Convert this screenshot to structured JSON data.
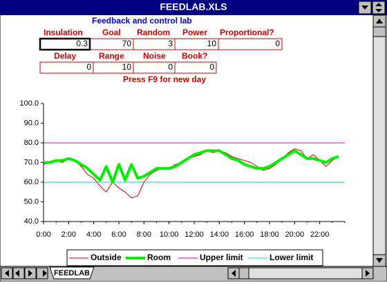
{
  "window": {
    "title": "FEEDLAB.XLS",
    "sheet_tab": "FEEDLAB"
  },
  "sheet": {
    "heading": "Feedback and control lab",
    "row1": [
      {
        "label": "Insulation",
        "value": "0.3"
      },
      {
        "label": "Goal",
        "value": "70"
      },
      {
        "label": "Random",
        "value": "3"
      },
      {
        "label": "Power",
        "value": "10"
      },
      {
        "label": "Proportional?",
        "value": "0"
      }
    ],
    "row2": [
      {
        "label": "Delay",
        "value": "0"
      },
      {
        "label": "Range",
        "value": "10"
      },
      {
        "label": "Noise",
        "value": "0"
      },
      {
        "label": "Book?",
        "value": "0"
      }
    ],
    "note": "Press F9 for new day"
  },
  "chart_data": {
    "type": "line",
    "x": [
      0,
      0.5,
      1,
      1.5,
      2,
      2.5,
      3,
      3.5,
      4,
      4.5,
      5,
      5.5,
      6,
      6.5,
      7,
      7.5,
      8,
      8.5,
      9,
      9.5,
      10,
      10.5,
      11,
      11.5,
      12,
      12.5,
      13,
      13.5,
      14,
      14.5,
      15,
      15.5,
      16,
      16.5,
      17,
      17.5,
      18,
      18.5,
      19,
      19.5,
      20,
      20.5,
      21,
      21.5,
      22,
      22.5,
      23,
      23.5
    ],
    "series": [
      {
        "name": "Outside",
        "color": "#cc0000",
        "width": 1,
        "values": [
          69,
          70,
          71,
          70,
          72,
          71,
          68,
          64,
          62,
          58,
          55,
          60,
          57,
          55,
          52,
          53,
          60,
          64,
          66,
          67,
          67,
          69,
          70,
          72,
          73,
          74,
          76,
          75,
          76,
          75,
          73,
          72,
          71,
          70,
          68,
          66,
          67,
          69,
          72,
          75,
          77,
          76,
          72,
          74,
          71,
          68,
          71,
          73
        ]
      },
      {
        "name": "Room",
        "color": "#00ee00",
        "width": 4,
        "values": [
          70,
          70,
          71,
          71,
          72,
          71,
          69,
          67,
          64,
          61,
          68,
          60,
          69,
          61,
          69,
          62,
          63,
          65,
          67,
          67,
          67,
          68,
          70,
          72,
          74,
          75,
          76,
          76,
          76,
          74,
          72,
          71,
          69,
          68,
          67,
          67,
          68,
          70,
          72,
          74,
          76,
          74,
          72,
          72,
          71,
          70,
          72,
          73
        ]
      }
    ],
    "reference_lines": [
      {
        "name": "Upper limit",
        "color": "#cc00cc",
        "value": 80
      },
      {
        "name": "Lower limit",
        "color": "#00cccc",
        "value": 60
      }
    ],
    "xlim": [
      0,
      24
    ],
    "xticks": [
      {
        "value": 0,
        "label": "0:00"
      },
      {
        "value": 2,
        "label": "2:00"
      },
      {
        "value": 4,
        "label": "4:00"
      },
      {
        "value": 6,
        "label": "6:00"
      },
      {
        "value": 8,
        "label": "8:00"
      },
      {
        "value": 10,
        "label": "10:00"
      },
      {
        "value": 12,
        "label": "12:00"
      },
      {
        "value": 14,
        "label": "14:00"
      },
      {
        "value": 16,
        "label": "16:00"
      },
      {
        "value": 18,
        "label": "18:00"
      },
      {
        "value": 20,
        "label": "20:00"
      },
      {
        "value": 22,
        "label": "22:00"
      }
    ],
    "ylim": [
      40,
      100
    ],
    "yticks": [
      {
        "value": 40,
        "label": "40.0"
      },
      {
        "value": 50,
        "label": "50.0"
      },
      {
        "value": 60,
        "label": "60.0"
      },
      {
        "value": 70,
        "label": "70.0"
      },
      {
        "value": 80,
        "label": "80.0"
      },
      {
        "value": 90,
        "label": "90.0"
      },
      {
        "value": 100,
        "label": "100.0"
      }
    ],
    "grid": false,
    "legend": "bottom"
  }
}
